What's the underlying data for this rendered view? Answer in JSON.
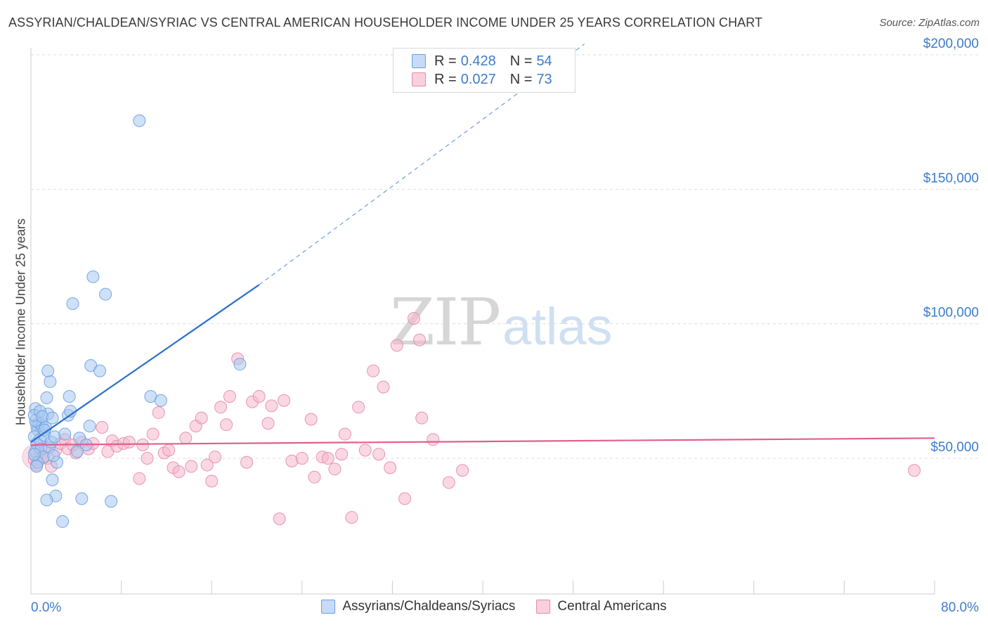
{
  "title": "ASSYRIAN/CHALDEAN/SYRIAC VS CENTRAL AMERICAN HOUSEHOLDER INCOME UNDER 25 YEARS CORRELATION CHART",
  "source": "Source: ZipAtlas.com",
  "watermark": {
    "zip": "ZIP",
    "atlas": "atlas"
  },
  "colors": {
    "blue_fill": "#a8c8f0",
    "blue_stroke": "#6a9fe0",
    "blue_line": "#2a6fcf",
    "pink_fill": "#f5b8cc",
    "pink_stroke": "#e58aab",
    "pink_line": "#e0608c",
    "tick_text": "#3d7cc9",
    "grid": "#dddddd"
  },
  "legend": {
    "rows": [
      {
        "r_label": "R =",
        "r_value": "0.428",
        "n_label": "N =",
        "n_value": "54"
      },
      {
        "r_label": "R =",
        "r_value": "0.027",
        "n_label": "N =",
        "n_value": "73"
      }
    ]
  },
  "bottom_legend": [
    {
      "label": "Assyrians/Chaldeans/Syriacs"
    },
    {
      "label": "Central Americans"
    }
  ],
  "chart_data": {
    "type": "scatter",
    "ylabel": "Householder Income Under 25 years",
    "xlabel": "",
    "x_tick_labels": [
      "0.0%",
      "80.0%"
    ],
    "y_tick_labels": [
      "$50,000",
      "$100,000",
      "$150,000",
      "$200,000"
    ],
    "y_ticks": [
      50000,
      100000,
      150000,
      200000
    ],
    "xlim": [
      0,
      80
    ],
    "ylim": [
      5000,
      210000
    ],
    "grid": true,
    "legend_position": "top-center",
    "series": [
      {
        "name": "Assyrians/Chaldeans/Syriacs",
        "r": 0.428,
        "n": 54,
        "trend": {
          "x0": 0,
          "y0": 56000,
          "x_solid_end": 20.2,
          "y_solid_end": 114500,
          "x_dash_end": 49,
          "y_dash_end": 204000
        },
        "points": [
          [
            0.5,
            62500
          ],
          [
            0.4,
            68500
          ],
          [
            0.6,
            60500
          ],
          [
            0.3,
            58000
          ],
          [
            0.7,
            63000
          ],
          [
            0.5,
            55500
          ],
          [
            0.4,
            52500
          ],
          [
            0.8,
            57000
          ],
          [
            1.0,
            62000
          ],
          [
            1.2,
            58500
          ],
          [
            0.9,
            53500
          ],
          [
            1.5,
            66500
          ],
          [
            1.3,
            61500
          ],
          [
            1.6,
            54000
          ],
          [
            1.8,
            56000
          ],
          [
            1.1,
            50500
          ],
          [
            0.6,
            48500
          ],
          [
            0.4,
            64000
          ],
          [
            0.3,
            66000
          ],
          [
            0.8,
            67500
          ],
          [
            1.0,
            65500
          ],
          [
            1.4,
            72500
          ],
          [
            1.7,
            78500
          ],
          [
            1.5,
            82500
          ],
          [
            1.9,
            65000
          ],
          [
            2.1,
            58000
          ],
          [
            2.3,
            48500
          ],
          [
            2.2,
            36000
          ],
          [
            1.4,
            34500
          ],
          [
            1.9,
            42000
          ],
          [
            2.8,
            26500
          ],
          [
            3.0,
            59000
          ],
          [
            3.3,
            66000
          ],
          [
            3.4,
            73000
          ],
          [
            3.5,
            67500
          ],
          [
            3.7,
            107500
          ],
          [
            4.1,
            52500
          ],
          [
            4.3,
            57500
          ],
          [
            4.5,
            35000
          ],
          [
            4.9,
            55000
          ],
          [
            5.2,
            62000
          ],
          [
            5.3,
            84500
          ],
          [
            5.5,
            117500
          ],
          [
            6.1,
            82500
          ],
          [
            6.6,
            111000
          ],
          [
            7.1,
            34000
          ],
          [
            9.6,
            175500
          ],
          [
            10.6,
            73000
          ],
          [
            11.5,
            71500
          ],
          [
            18.5,
            85000
          ],
          [
            0.3,
            51500
          ],
          [
            0.5,
            47000
          ],
          [
            1.2,
            60500
          ],
          [
            2.0,
            51000
          ]
        ]
      },
      {
        "name": "Central Americans",
        "r": 0.027,
        "n": 73,
        "trend": {
          "x0": 0,
          "y0": 55000,
          "x1": 80,
          "y1": 57500
        },
        "points": [
          [
            0.3,
            49500
          ],
          [
            0.5,
            47500
          ],
          [
            0.8,
            52500
          ],
          [
            1.2,
            54000
          ],
          [
            1.5,
            50000
          ],
          [
            1.8,
            47000
          ],
          [
            2.2,
            53000
          ],
          [
            2.6,
            55500
          ],
          [
            3.0,
            57000
          ],
          [
            3.3,
            53500
          ],
          [
            3.7,
            55000
          ],
          [
            4.0,
            52000
          ],
          [
            4.5,
            56000
          ],
          [
            5.1,
            53500
          ],
          [
            5.5,
            55500
          ],
          [
            6.3,
            61500
          ],
          [
            6.8,
            52500
          ],
          [
            7.2,
            56500
          ],
          [
            7.6,
            54500
          ],
          [
            8.2,
            55500
          ],
          [
            8.7,
            56000
          ],
          [
            9.6,
            42500
          ],
          [
            9.9,
            55000
          ],
          [
            10.3,
            50000
          ],
          [
            10.8,
            59000
          ],
          [
            11.3,
            67000
          ],
          [
            11.8,
            52000
          ],
          [
            12.2,
            53000
          ],
          [
            12.6,
            46500
          ],
          [
            13.1,
            45000
          ],
          [
            13.7,
            57500
          ],
          [
            14.2,
            47000
          ],
          [
            14.6,
            62000
          ],
          [
            15.1,
            65000
          ],
          [
            15.6,
            47500
          ],
          [
            16.0,
            41500
          ],
          [
            16.3,
            50500
          ],
          [
            16.8,
            69000
          ],
          [
            17.3,
            62500
          ],
          [
            17.6,
            73000
          ],
          [
            18.3,
            87000
          ],
          [
            19.1,
            48500
          ],
          [
            19.6,
            71000
          ],
          [
            20.2,
            73000
          ],
          [
            21.0,
            63000
          ],
          [
            21.3,
            69500
          ],
          [
            22.0,
            27500
          ],
          [
            22.4,
            71500
          ],
          [
            23.1,
            49000
          ],
          [
            24.0,
            50000
          ],
          [
            24.8,
            64500
          ],
          [
            25.1,
            43000
          ],
          [
            25.8,
            50500
          ],
          [
            26.3,
            50000
          ],
          [
            26.9,
            46000
          ],
          [
            27.5,
            51500
          ],
          [
            27.8,
            59000
          ],
          [
            28.4,
            28000
          ],
          [
            29.0,
            69000
          ],
          [
            29.6,
            53000
          ],
          [
            30.3,
            82500
          ],
          [
            30.8,
            51500
          ],
          [
            31.2,
            76500
          ],
          [
            31.8,
            46500
          ],
          [
            32.4,
            92000
          ],
          [
            33.1,
            35000
          ],
          [
            33.9,
            102000
          ],
          [
            34.4,
            94000
          ],
          [
            34.6,
            65000
          ],
          [
            35.6,
            57000
          ],
          [
            37.0,
            41000
          ],
          [
            38.2,
            45500
          ],
          [
            78.2,
            45500
          ]
        ]
      }
    ]
  }
}
